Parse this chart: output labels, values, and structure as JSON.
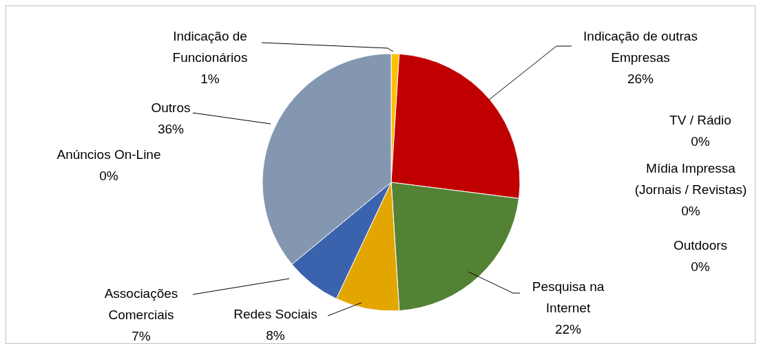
{
  "chart_data": {
    "type": "pie",
    "categories": [
      "Indicação de Funcionários",
      "Indicação de outras Empresas",
      "TV / Rádio",
      "Mídia Impressa (Jornais / Revistas)",
      "Outdoors",
      "Pesquisa na Internet",
      "Redes Sociais",
      "Associações Comerciais",
      "Anúncios On-Line",
      "Outros"
    ],
    "values": [
      1,
      26,
      0,
      0,
      0,
      22,
      8,
      7,
      0,
      36
    ],
    "value_labels": [
      "1%",
      "26%",
      "0%",
      "0%",
      "0%",
      "22%",
      "8%",
      "7%",
      "0%",
      "36%"
    ],
    "colors": [
      "#ffc000",
      "#c00000",
      null,
      null,
      null,
      "#548235",
      "#e3a600",
      "#3b63ad",
      null,
      "#8497b0"
    ]
  }
}
